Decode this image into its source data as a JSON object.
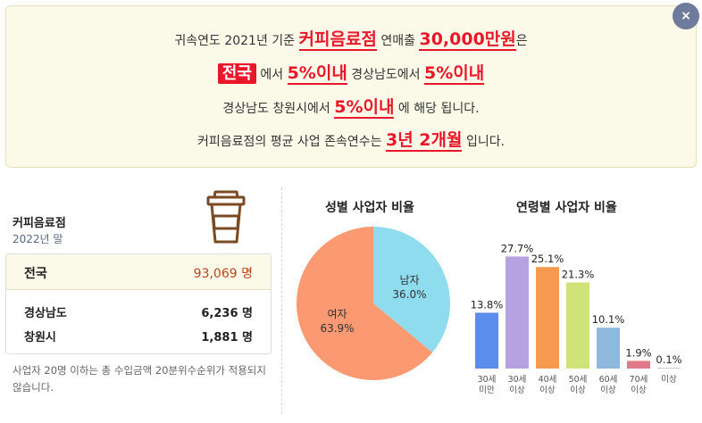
{
  "banner": {
    "line1_pre": "귀속연도 2021년 기준",
    "line1_hl1": "커피음료점",
    "line1_mid": "연매출",
    "line1_hl2": "30,000만원",
    "line1_post": "은",
    "line2_box": "전국",
    "line2_a": "에서",
    "line2_hl1": "5%이내",
    "line2_b": "경상남도에서",
    "line2_hl2": "5%이내",
    "line3_a": "경상남도 창원시에서",
    "line3_hl": "5%이내",
    "line3_b": "에 해당 됩니다.",
    "line4_a": "커피음료점의 평균 사업 존속연수는",
    "line4_hl": "3년 2개월",
    "line4_b": "입니다.",
    "close_label": "×"
  },
  "business": {
    "title": "커피음료점",
    "subtitle": "2022년 말"
  },
  "stats": {
    "rows": [
      {
        "label": "전국",
        "value": "93,069 명"
      },
      {
        "label": "경상남도",
        "value": "6,236 명"
      },
      {
        "label": "창원시",
        "value": "1,881 명"
      }
    ]
  },
  "note": "사업자 20명 이하는 총 수입금액 20분위수순위가 적용되지 않습니다.",
  "chart_data": [
    {
      "type": "pie",
      "title": "성별 사업자 비율",
      "categories": [
        "남자",
        "여자"
      ],
      "values": [
        36.0,
        63.9
      ],
      "labels": [
        "36.0%",
        "63.9%"
      ],
      "colors": [
        "#8fdcef",
        "#fb9a72"
      ]
    },
    {
      "type": "bar",
      "title": "연령별 사업자 비율",
      "categories": [
        [
          "30세",
          "미만"
        ],
        [
          "30세",
          "이상"
        ],
        [
          "40세",
          "이상"
        ],
        [
          "50세",
          "이상"
        ],
        [
          "60세",
          "이상"
        ],
        [
          "70세",
          "이상"
        ],
        [
          "미상"
        ]
      ],
      "values": [
        13.8,
        27.7,
        25.1,
        21.3,
        10.1,
        1.9,
        0.1
      ],
      "labels": [
        "13.8%",
        "27.7%",
        "25.1%",
        "21.3%",
        "10.1%",
        "1.9%",
        "0.1%"
      ],
      "colors": [
        "#5b8ded",
        "#b8a1e1",
        "#f59a4f",
        "#d0e37a",
        "#8fb8dd",
        "#e07a8a",
        "#cccccc"
      ],
      "ylim": [
        0,
        30
      ]
    }
  ]
}
